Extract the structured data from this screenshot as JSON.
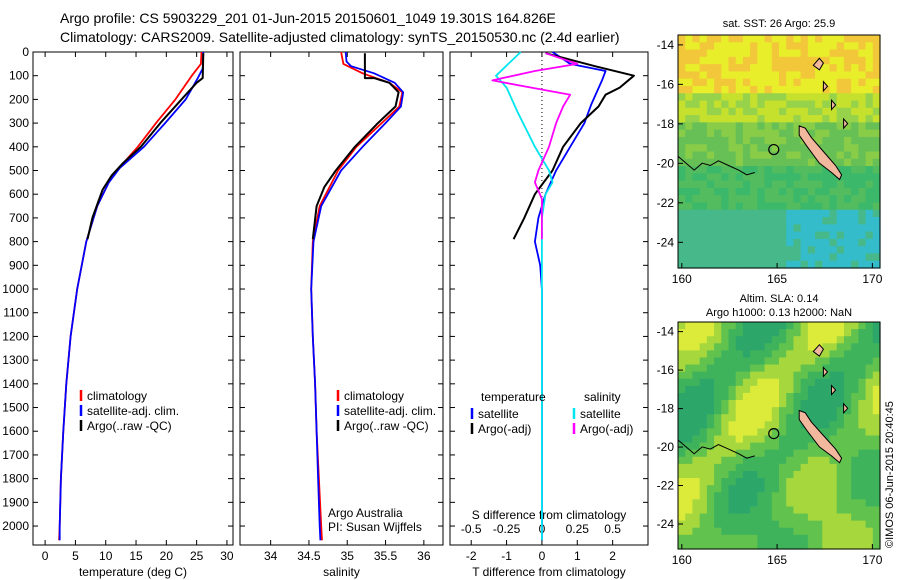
{
  "header": {
    "line1": "Argo profile: CS 5903229_201 01-Jun-2015 20150601_1049 19.301S 164.826E",
    "line2": "Climatology: CARS2009. Satellite-adjusted climatology: synTS_20150530.nc (2.4d earlier)"
  },
  "side_text": "©IMOS 06-Jun-2015 20:40:45",
  "chart_data": [
    {
      "type": "line",
      "id": "temperature",
      "xlabel": "temperature (deg C)",
      "ylabel": "",
      "xlim": [
        -2,
        31
      ],
      "ylim": [
        2080,
        0
      ],
      "xticks": [
        0,
        5,
        10,
        15,
        20,
        25,
        30
      ],
      "yticks": [
        0,
        100,
        200,
        300,
        400,
        500,
        600,
        700,
        800,
        900,
        1000,
        1100,
        1200,
        1300,
        1400,
        1500,
        1600,
        1700,
        1800,
        1900,
        2000
      ],
      "legend": [
        "climatology",
        "satellite-adj. clim.",
        "Argo(..raw -QC)"
      ],
      "series": [
        {
          "name": "climatology",
          "color": "#ff0000",
          "points": [
            [
              25.8,
              0
            ],
            [
              25.7,
              50
            ],
            [
              24.2,
              100
            ],
            [
              21.5,
              200
            ],
            [
              18.3,
              300
            ],
            [
              15.3,
              400
            ],
            [
              12.5,
              480
            ],
            [
              10.5,
              550
            ],
            [
              8.6,
              650
            ],
            [
              6.8,
              800
            ],
            [
              5.3,
              1000
            ],
            [
              4.2,
              1200
            ],
            [
              3.5,
              1400
            ],
            [
              3.0,
              1600
            ],
            [
              2.6,
              1800
            ],
            [
              2.4,
              2000
            ],
            [
              2.3,
              2060
            ]
          ]
        },
        {
          "name": "satellite-adj. clim.",
          "color": "#0000ff",
          "points": [
            [
              26.1,
              0
            ],
            [
              26.0,
              70
            ],
            [
              25.2,
              110
            ],
            [
              23.2,
              200
            ],
            [
              19.8,
              300
            ],
            [
              16.3,
              400
            ],
            [
              12.3,
              490
            ],
            [
              10.5,
              550
            ],
            [
              8.6,
              650
            ],
            [
              6.8,
              800
            ],
            [
              5.3,
              1000
            ],
            [
              4.2,
              1200
            ],
            [
              3.5,
              1400
            ],
            [
              3.0,
              1600
            ],
            [
              2.6,
              1800
            ],
            [
              2.4,
              2000
            ],
            [
              2.4,
              2060
            ]
          ]
        },
        {
          "name": "Argo(..raw -QC)",
          "color": "#000000",
          "points": [
            [
              26.1,
              5
            ],
            [
              26.0,
              110
            ],
            [
              25.0,
              130
            ],
            [
              22.5,
              200
            ],
            [
              19.0,
              300
            ],
            [
              15.8,
              400
            ],
            [
              12.8,
              470
            ],
            [
              11.0,
              520
            ],
            [
              9.5,
              580
            ],
            [
              7.8,
              700
            ],
            [
              7.0,
              790
            ]
          ]
        }
      ]
    },
    {
      "type": "line",
      "id": "salinity",
      "xlabel": "salinity",
      "ylabel": "",
      "xlim": [
        33.6,
        36.25
      ],
      "ylim": [
        2080,
        0
      ],
      "xticks": [
        34,
        34.5,
        35,
        35.5,
        36
      ],
      "yticks": [],
      "legend": [
        "climatology",
        "satellite-adj. clim.",
        "Argo(..raw -QC)"
      ],
      "annotation": [
        "Argo Australia",
        "PI: Susan Wijffels"
      ],
      "series": [
        {
          "name": "climatology",
          "color": "#ff0000",
          "points": [
            [
              34.92,
              0
            ],
            [
              34.95,
              50
            ],
            [
              35.2,
              90
            ],
            [
              35.55,
              130
            ],
            [
              35.72,
              170
            ],
            [
              35.68,
              230
            ],
            [
              35.45,
              300
            ],
            [
              35.12,
              400
            ],
            [
              34.88,
              500
            ],
            [
              34.64,
              650
            ],
            [
              34.55,
              800
            ],
            [
              34.53,
              1000
            ],
            [
              34.55,
              1200
            ],
            [
              34.58,
              1400
            ],
            [
              34.6,
              1600
            ],
            [
              34.63,
              1800
            ],
            [
              34.66,
              2000
            ],
            [
              34.67,
              2060
            ]
          ]
        },
        {
          "name": "satellite-adj. clim.",
          "color": "#0000ff",
          "points": [
            [
              34.98,
              0
            ],
            [
              34.99,
              40
            ],
            [
              35.05,
              60
            ],
            [
              35.35,
              90
            ],
            [
              35.62,
              130
            ],
            [
              35.73,
              170
            ],
            [
              35.7,
              230
            ],
            [
              35.5,
              300
            ],
            [
              35.2,
              400
            ],
            [
              34.92,
              500
            ],
            [
              34.66,
              650
            ],
            [
              34.56,
              800
            ],
            [
              34.53,
              1000
            ],
            [
              34.55,
              1200
            ],
            [
              34.58,
              1400
            ],
            [
              34.6,
              1600
            ],
            [
              34.62,
              1800
            ],
            [
              34.64,
              2000
            ],
            [
              34.65,
              2060
            ]
          ]
        },
        {
          "name": "Argo(..raw -QC)",
          "color": "#000000",
          "points": [
            [
              35.23,
              5
            ],
            [
              35.23,
              110
            ],
            [
              35.35,
              110
            ],
            [
              35.55,
              130
            ],
            [
              35.67,
              170
            ],
            [
              35.63,
              230
            ],
            [
              35.4,
              300
            ],
            [
              35.1,
              400
            ],
            [
              34.85,
              500
            ],
            [
              34.7,
              570
            ],
            [
              34.6,
              650
            ],
            [
              34.55,
              790
            ]
          ]
        }
      ]
    },
    {
      "type": "line",
      "id": "difference",
      "xlabel": "T difference from climatology",
      "xlabel2": "S difference from climatology",
      "xlim": [
        -2.6,
        3.0
      ],
      "ylim": [
        2080,
        0
      ],
      "xticks": [
        -2,
        -1,
        0,
        1,
        2
      ],
      "xticks2": [
        "-0.5",
        "-0.25",
        "0",
        "0.25",
        "0.5"
      ],
      "yticks": [],
      "legend_temperature_title": "temperature",
      "legend_temperature": [
        "satellite",
        "Argo(-adj)"
      ],
      "legend_salinity_title": "salinity",
      "legend_salinity": [
        "satellite",
        "Argo(-adj)"
      ],
      "series": [
        {
          "name": "temperature satellite",
          "color": "#0000ff",
          "points": [
            [
              0.3,
              0
            ],
            [
              0.8,
              50
            ],
            [
              1.8,
              80
            ],
            [
              1.7,
              120
            ],
            [
              1.4,
              220
            ],
            [
              1.2,
              300
            ],
            [
              0.8,
              400
            ],
            [
              0.4,
              500
            ],
            [
              0.1,
              600
            ],
            [
              -0.1,
              700
            ],
            [
              -0.2,
              800
            ],
            [
              -0.05,
              900
            ],
            [
              0,
              1000
            ],
            [
              0,
              2060
            ]
          ]
        },
        {
          "name": "temperature Argo(-adj)",
          "color": "#000000",
          "points": [
            [
              0.1,
              5
            ],
            [
              1.5,
              60
            ],
            [
              2.6,
              100
            ],
            [
              2.2,
              150
            ],
            [
              1.8,
              180
            ],
            [
              1.6,
              230
            ],
            [
              1.1,
              300
            ],
            [
              0.6,
              400
            ],
            [
              0.3,
              500
            ],
            [
              -0.2,
              600
            ],
            [
              -0.5,
              700
            ],
            [
              -0.8,
              790
            ]
          ]
        },
        {
          "name": "salinity satellite",
          "color": "#00e5ee",
          "points": [
            [
              -0.6,
              0
            ],
            [
              -1.3,
              100
            ],
            [
              -1.0,
              150
            ],
            [
              -0.7,
              250
            ],
            [
              -0.2,
              400
            ],
            [
              0.2,
              500
            ],
            [
              0.3,
              550
            ],
            [
              0.1,
              600
            ],
            [
              0,
              700
            ],
            [
              0,
              2060
            ]
          ]
        },
        {
          "name": "salinity Argo(-adj)",
          "color": "#ff00ff",
          "points": [
            [
              0.1,
              5
            ],
            [
              1.0,
              50
            ],
            [
              -0.2,
              80
            ],
            [
              -1.4,
              120
            ],
            [
              -0.3,
              150
            ],
            [
              0.8,
              180
            ],
            [
              0.6,
              230
            ],
            [
              0.4,
              300
            ],
            [
              0.2,
              400
            ],
            [
              -0.1,
              500
            ],
            [
              -0.2,
              550
            ],
            [
              0,
              620
            ],
            [
              0,
              790
            ]
          ]
        }
      ]
    },
    {
      "type": "heatmap",
      "id": "sst_map",
      "title": "sat. SST: 26 Argo: 25.9",
      "xlim": [
        159.8,
        170.4
      ],
      "ylim": [
        -25.3,
        -13.5
      ],
      "xticks": [
        160,
        165,
        170
      ],
      "yticks": [
        -14,
        -16,
        -18,
        -20,
        -22,
        -24
      ],
      "marker": [
        164.826,
        -19.301
      ]
    },
    {
      "type": "heatmap",
      "id": "sla_map",
      "title_line1": "Altim. SLA: 0.14",
      "title_line2": "Argo h1000: 0.13 h2000: NaN",
      "xlim": [
        159.8,
        170.4
      ],
      "ylim": [
        -25.3,
        -13.5
      ],
      "xticks": [
        160,
        165,
        170
      ],
      "yticks": [
        -14,
        -16,
        -18,
        -20,
        -22,
        -24
      ],
      "marker": [
        164.826,
        -19.301
      ]
    }
  ]
}
